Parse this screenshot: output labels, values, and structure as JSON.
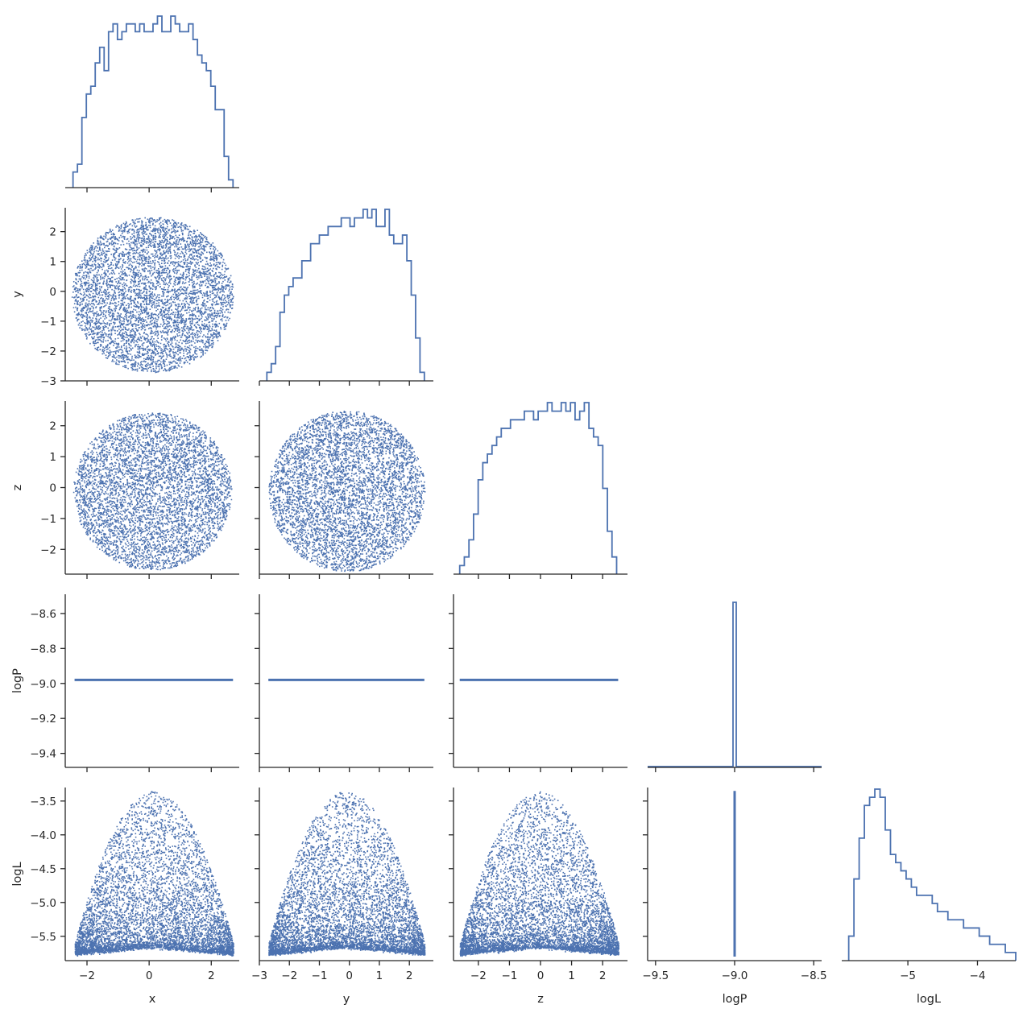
{
  "chart_data": {
    "type": "pairplot",
    "layout": "corner",
    "variables": [
      "x",
      "y",
      "z",
      "logP",
      "logL"
    ],
    "color": "#4c72b0",
    "axis_color": "#262626",
    "background": "#ffffff",
    "grid": false,
    "axes": {
      "x": {
        "range": [
          -2.7,
          2.9
        ],
        "ticks": [
          -2,
          0,
          2
        ],
        "tick_labels": [
          "−2",
          "0",
          "2"
        ]
      },
      "y": {
        "range": [
          -3.0,
          2.8
        ],
        "ticks": [
          -3,
          -2,
          -1,
          0,
          1,
          2
        ],
        "tick_labels": [
          "−3",
          "−2",
          "−1",
          "0",
          "1",
          "2"
        ]
      },
      "z": {
        "range": [
          -2.8,
          2.8
        ],
        "ticks": [
          -2,
          -1,
          0,
          1,
          2
        ],
        "tick_labels": [
          "−2",
          "−1",
          "0",
          "1",
          "2"
        ]
      },
      "logP": {
        "range": [
          -9.48,
          -8.49
        ],
        "ticks": [
          -9.4,
          -9.2,
          -9.0,
          -8.8,
          -8.6
        ],
        "tick_labels": [
          "−9.4",
          "−9.2",
          "−9.0",
          "−8.8",
          "−8.6"
        ]
      },
      "logL": {
        "range": [
          -5.86,
          -3.3
        ],
        "ticks": [
          -5.5,
          -5.0,
          -4.5,
          -4.0,
          -3.5
        ],
        "tick_labels": [
          "−5.5",
          "−5.0",
          "−4.5",
          "−4.0",
          "−3.5"
        ]
      },
      "logP_diag": {
        "range": [
          -9.55,
          -8.45
        ],
        "ticks": [
          -9.5,
          -9.0,
          -8.5
        ],
        "tick_labels": [
          "−9.5",
          "−9.0",
          "−8.5"
        ]
      },
      "logL_diag": {
        "range": [
          -5.95,
          -3.45
        ],
        "ticks": [
          -5,
          -4
        ],
        "tick_labels": [
          "−5",
          "−4"
        ]
      }
    },
    "diagonal_histograms": {
      "x": {
        "range": [
          -2.45,
          2.7
        ],
        "counts": [
          2,
          3,
          9,
          12,
          13,
          16,
          18,
          15,
          20,
          21,
          19,
          20,
          21,
          21,
          20,
          21,
          20,
          20,
          21,
          22,
          20,
          20,
          22,
          21,
          20,
          20,
          21,
          19,
          17,
          16,
          15,
          13,
          10,
          10,
          4,
          1
        ]
      },
      "y": {
        "range": [
          -2.75,
          2.5
        ],
        "counts": [
          1,
          2,
          4,
          8,
          10,
          11,
          12,
          12,
          14,
          14,
          16,
          16,
          17,
          17,
          18,
          18,
          18,
          19,
          19,
          18,
          19,
          19,
          20,
          19,
          20,
          18,
          18,
          20,
          17,
          16,
          16,
          17,
          14,
          10,
          5,
          1
        ]
      },
      "z": {
        "range": [
          -2.6,
          2.45
        ],
        "counts": [
          1,
          2,
          4,
          7,
          11,
          13,
          14,
          15,
          16,
          17,
          17,
          18,
          18,
          18,
          19,
          19,
          18,
          19,
          19,
          20,
          19,
          19,
          20,
          19,
          20,
          18,
          19,
          20,
          17,
          16,
          15,
          10,
          5,
          2
        ]
      },
      "logP": {
        "value": -9.0,
        "counts": [
          0,
          0,
          0,
          0,
          0,
          0,
          0,
          0,
          0,
          0,
          0,
          0,
          0,
          0,
          0,
          0,
          0,
          0,
          0,
          0,
          0,
          0,
          0,
          0,
          0,
          1,
          0,
          0,
          0,
          0,
          0,
          0,
          0,
          0,
          0,
          0,
          0,
          0,
          0,
          0,
          0,
          0,
          0,
          0,
          0,
          0,
          0,
          0,
          0,
          0
        ]
      },
      "logL": {
        "range": [
          -5.85,
          -3.45
        ],
        "counts": [
          3,
          10,
          15,
          19,
          20,
          21,
          20,
          16,
          13,
          12,
          11,
          10,
          9,
          8,
          8,
          8,
          7,
          6,
          6,
          5,
          5,
          5,
          4,
          4,
          4,
          3,
          3,
          2,
          2,
          2,
          1,
          1
        ]
      }
    },
    "scatter_panels": [
      {
        "x": "x",
        "y": "y",
        "shape": "disk",
        "center": [
          0.1,
          -0.1
        ],
        "radius": 2.6
      },
      {
        "x": "x",
        "y": "z",
        "shape": "disk",
        "center": [
          0.1,
          -0.1
        ],
        "radius": 2.55
      },
      {
        "x": "y",
        "y": "z",
        "shape": "disk",
        "center": [
          -0.1,
          -0.1
        ],
        "radius": 2.6
      },
      {
        "x": "x",
        "y": "logP",
        "shape": "constant",
        "value": -8.98,
        "span": [
          -2.4,
          2.7
        ]
      },
      {
        "x": "y",
        "y": "logP",
        "shape": "constant",
        "value": -8.98,
        "span": [
          -2.7,
          2.5
        ]
      },
      {
        "x": "z",
        "y": "logP",
        "shape": "constant",
        "value": -8.98,
        "span": [
          -2.6,
          2.5
        ]
      },
      {
        "x": "x",
        "y": "logL",
        "shape": "dome",
        "peak": -3.35,
        "floor": -5.6,
        "span": [
          -2.4,
          2.7
        ]
      },
      {
        "x": "y",
        "y": "logL",
        "shape": "dome",
        "peak": -3.35,
        "floor": -5.6,
        "span": [
          -2.7,
          2.5
        ]
      },
      {
        "x": "z",
        "y": "logL",
        "shape": "dome",
        "peak": -3.35,
        "floor": -5.6,
        "span": [
          -2.6,
          2.5
        ]
      },
      {
        "x": "logP",
        "y": "logL",
        "shape": "vertical",
        "value": -9.0,
        "span": [
          -5.8,
          -3.35
        ]
      }
    ]
  }
}
